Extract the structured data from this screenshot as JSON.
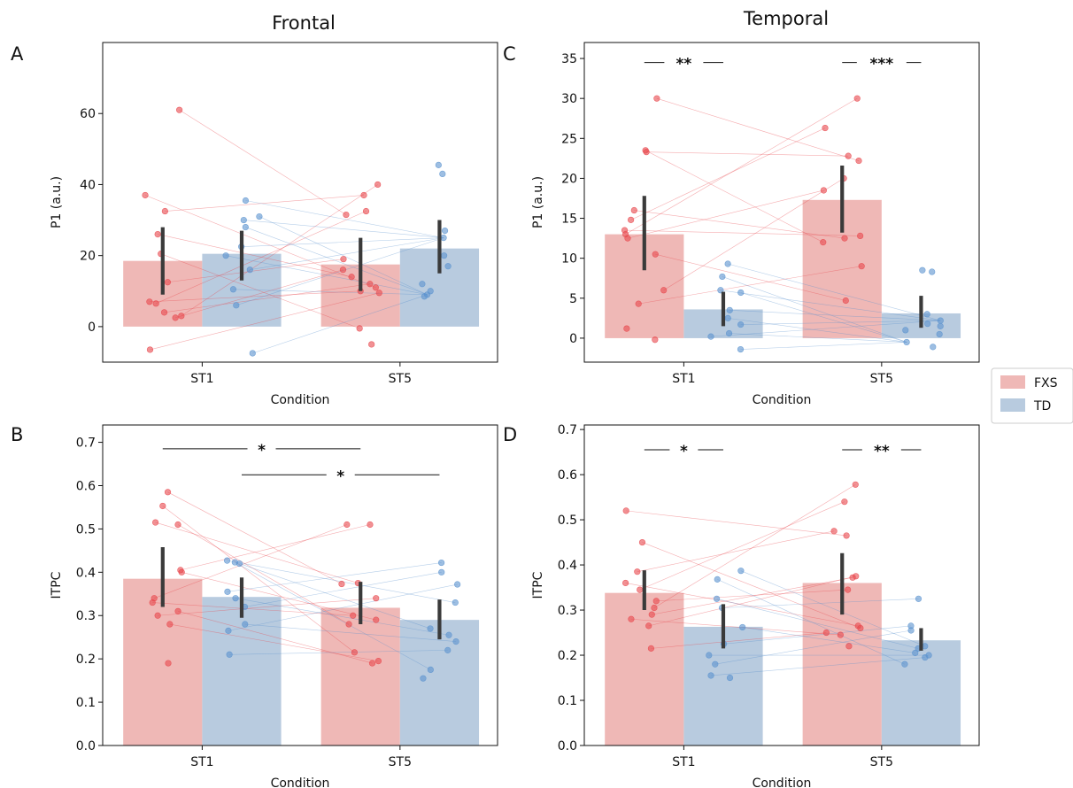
{
  "colors": {
    "fxs_bar": "#efb8b6",
    "td_bar": "#b8cbdf",
    "fxs_point": "#e8474d",
    "td_point": "#5b93cf",
    "errorbar": "#3a3a3a"
  },
  "column_titles": [
    "Frontal",
    "Temporal"
  ],
  "legend": {
    "entries": [
      {
        "label": "FXS",
        "color": "#efb8b6"
      },
      {
        "label": "TD",
        "color": "#b8cbdf"
      }
    ]
  },
  "chart_data": [
    {
      "id": "A",
      "type": "bar",
      "panel_letter": "A",
      "xlabel": "Condition",
      "ylabel": "P1 (a.u.)",
      "categories": [
        "ST1",
        "ST5"
      ],
      "ylim": [
        -10,
        80
      ],
      "yticks": [
        0,
        20,
        40,
        60
      ],
      "series": [
        {
          "name": "FXS",
          "values": [
            18.5,
            17.5
          ],
          "ci": [
            [
              9,
              28
            ],
            [
              10,
              25
            ]
          ],
          "points": [
            [
              61,
              37,
              32.5,
              26,
              20.5,
              12.5,
              7,
              6.5,
              4,
              3,
              2.5,
              -6.5
            ],
            [
              40,
              37,
              32.5,
              31.5,
              19,
              16,
              14,
              12,
              11,
              10,
              9.5,
              -0.5,
              -5
            ]
          ]
        },
        {
          "name": "TD",
          "values": [
            20.5,
            22
          ],
          "ci": [
            [
              13,
              27
            ],
            [
              15,
              30
            ]
          ],
          "points": [
            [
              35.5,
              31,
              30,
              28,
              22.5,
              20,
              16,
              10.5,
              6,
              -7.5
            ],
            [
              45.5,
              43,
              27,
              25,
              20,
              17,
              12,
              10,
              9,
              8.5
            ]
          ]
        }
      ],
      "significance": []
    },
    {
      "id": "C",
      "type": "bar",
      "panel_letter": "C",
      "xlabel": "Condition",
      "ylabel": "P1 (a.u.)",
      "categories": [
        "ST1",
        "ST5"
      ],
      "ylim": [
        -3,
        37
      ],
      "yticks": [
        0,
        5,
        10,
        15,
        20,
        25,
        30,
        35
      ],
      "series": [
        {
          "name": "FXS",
          "values": [
            13,
            17.3
          ],
          "ci": [
            [
              8.5,
              17.8
            ],
            [
              13.2,
              21.6
            ]
          ],
          "points": [
            [
              30,
              23.5,
              23.3,
              16,
              14.8,
              13.5,
              13,
              12.5,
              10.5,
              6,
              4.3,
              1.2,
              -0.2
            ],
            [
              30,
              26.3,
              22.8,
              22.2,
              20,
              18.5,
              12.8,
              12.5,
              12,
              9,
              4.7
            ]
          ]
        },
        {
          "name": "TD",
          "values": [
            3.6,
            3.1
          ],
          "ci": [
            [
              1.5,
              5.8
            ],
            [
              1.3,
              5.3
            ]
          ],
          "points": [
            [
              9.3,
              7.7,
              6,
              5.7,
              3.5,
              2.5,
              1.7,
              0.6,
              0.2,
              -1.4
            ],
            [
              8.5,
              8.3,
              3,
              2.2,
              1.8,
              1.5,
              1,
              0.5,
              -0.5,
              -1.1
            ]
          ]
        }
      ],
      "significance": [
        {
          "label": "**",
          "from": 0,
          "to": 0,
          "y": 34.5
        },
        {
          "label": "***",
          "from": 1,
          "to": 1,
          "y": 34.5
        }
      ]
    },
    {
      "id": "B",
      "type": "bar",
      "panel_letter": "B",
      "xlabel": "Condition",
      "ylabel": "ITPC",
      "categories": [
        "ST1",
        "ST5"
      ],
      "ylim": [
        0,
        0.74
      ],
      "yticks": [
        0.0,
        0.1,
        0.2,
        0.3,
        0.4,
        0.5,
        0.6,
        0.7
      ],
      "series": [
        {
          "name": "FXS",
          "values": [
            0.385,
            0.318
          ],
          "ci": [
            [
              0.32,
              0.458
            ],
            [
              0.28,
              0.378
            ]
          ],
          "points": [
            [
              0.585,
              0.553,
              0.515,
              0.51,
              0.405,
              0.4,
              0.34,
              0.33,
              0.31,
              0.3,
              0.28,
              0.19
            ],
            [
              0.51,
              0.51,
              0.375,
              0.373,
              0.34,
              0.3,
              0.29,
              0.28,
              0.215,
              0.195,
              0.19
            ]
          ]
        },
        {
          "name": "TD",
          "values": [
            0.343,
            0.29
          ],
          "ci": [
            [
              0.295,
              0.388
            ],
            [
              0.245,
              0.337
            ]
          ],
          "points": [
            [
              0.427,
              0.423,
              0.42,
              0.355,
              0.34,
              0.32,
              0.28,
              0.265,
              0.21
            ],
            [
              0.422,
              0.4,
              0.372,
              0.33,
              0.27,
              0.255,
              0.24,
              0.22,
              0.175,
              0.155
            ]
          ]
        }
      ],
      "significance": [
        {
          "label": "*",
          "from": 0,
          "to": 1,
          "series_from": "FXS",
          "series_to": "FXS",
          "y": 0.685
        },
        {
          "label": "*",
          "from": 0,
          "to": 1,
          "series_from": "TD",
          "series_to": "TD",
          "y": 0.625
        }
      ]
    },
    {
      "id": "D",
      "type": "bar",
      "panel_letter": "D",
      "xlabel": "Condition",
      "ylabel": "ITPC",
      "categories": [
        "ST1",
        "ST5"
      ],
      "ylim": [
        0,
        0.71
      ],
      "yticks": [
        0.0,
        0.1,
        0.2,
        0.3,
        0.4,
        0.5,
        0.6,
        0.7
      ],
      "series": [
        {
          "name": "FXS",
          "values": [
            0.338,
            0.36
          ],
          "ci": [
            [
              0.3,
              0.388
            ],
            [
              0.29,
              0.426
            ]
          ],
          "points": [
            [
              0.52,
              0.45,
              0.385,
              0.36,
              0.345,
              0.32,
              0.305,
              0.29,
              0.28,
              0.265,
              0.215
            ],
            [
              0.578,
              0.54,
              0.475,
              0.465,
              0.375,
              0.372,
              0.345,
              0.265,
              0.26,
              0.25,
              0.245,
              0.22
            ]
          ]
        },
        {
          "name": "TD",
          "values": [
            0.263,
            0.233
          ],
          "ci": [
            [
              0.215,
              0.313
            ],
            [
              0.21,
              0.26
            ]
          ],
          "points": [
            [
              0.387,
              0.368,
              0.325,
              0.305,
              0.262,
              0.225,
              0.2,
              0.18,
              0.155,
              0.15
            ],
            [
              0.325,
              0.265,
              0.255,
              0.22,
              0.215,
              0.205,
              0.2,
              0.195,
              0.18
            ]
          ]
        }
      ],
      "significance": [
        {
          "label": "*",
          "from": 0,
          "to": 0,
          "y": 0.655
        },
        {
          "label": "**",
          "from": 1,
          "to": 1,
          "y": 0.655
        }
      ]
    }
  ]
}
